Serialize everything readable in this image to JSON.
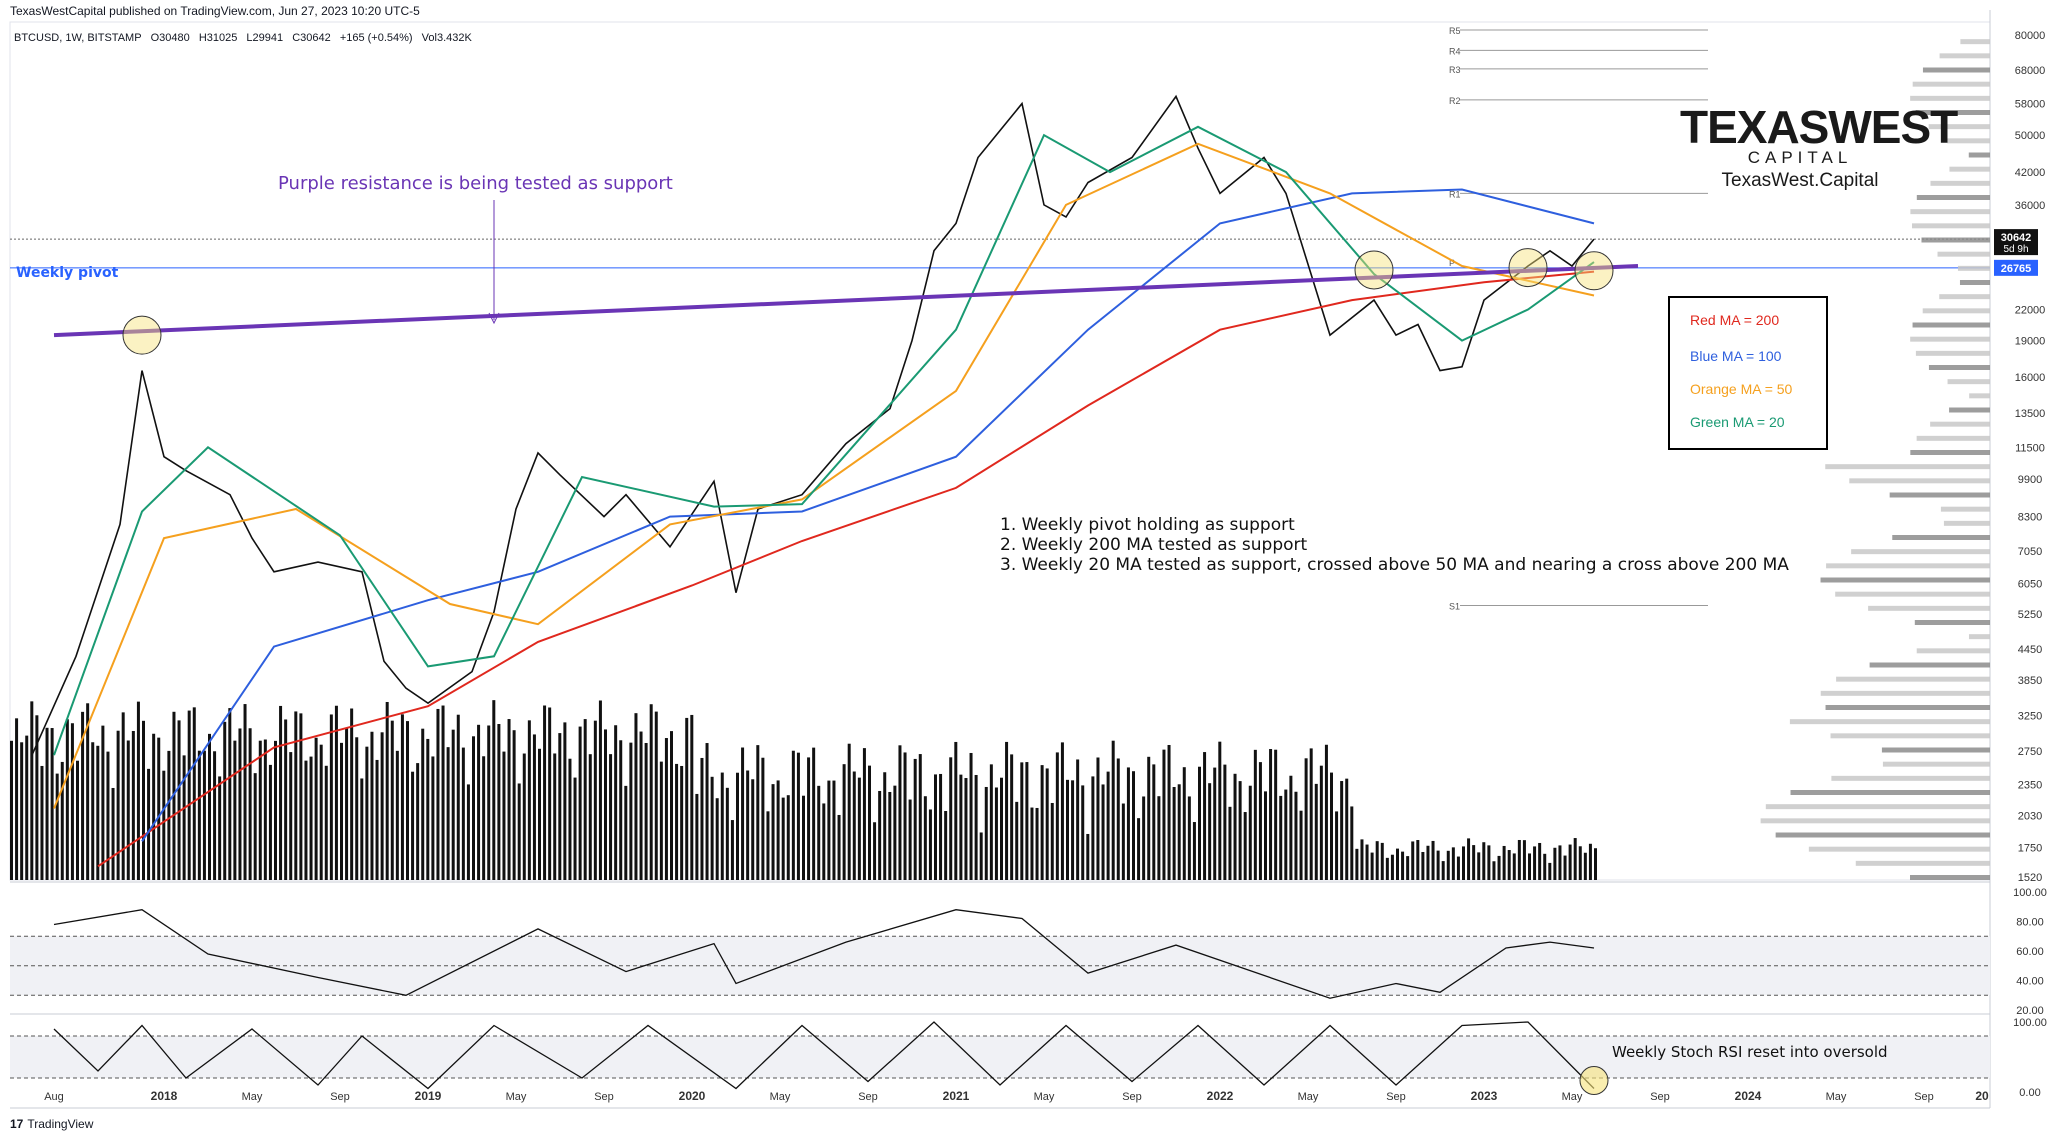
{
  "header": {
    "published": "TexasWestCapital published on TradingView.com, Jun 27, 2023 10:20 UTC-5",
    "symbol": "BTCUSD, 1W, BITSTAMP",
    "open": "O30480",
    "high": "H31025",
    "low": "L29941",
    "close": "C30642",
    "change": "+165 (+0.54%)",
    "volume": "Vol3.432K"
  },
  "brand": {
    "line1a": "TEXAS",
    "line1b": "WEST",
    "line2": "CAPITAL",
    "line3": "TexasWest.Capital"
  },
  "colors": {
    "red_ma": "#e0281e",
    "blue_ma": "#2e5fde",
    "orange_ma": "#f5a01e",
    "green_ma": "#1a9a73",
    "purple": "#6a35b5",
    "pivot": "#2962ff"
  },
  "annotations": {
    "purple_note": "Purple resistance is being tested as support",
    "pivot_label": "Weekly pivot",
    "point1": "1. Weekly pivot holding as support",
    "point2": "2. Weekly 200 MA tested as support",
    "point3": "3. Weekly 20 MA tested as support, crossed above 50 MA and nearing a cross above 200 MA",
    "stoch_note": "Weekly Stoch RSI reset into oversold"
  },
  "legend": {
    "red": "Red MA = 200",
    "blue": "Blue MA = 100",
    "orange": "Orange MA = 50",
    "green": "Green MA = 20"
  },
  "footer": "TradingView",
  "chart_data": [
    {
      "type": "line",
      "title": "BTCUSD, 1W, BITSTAMP",
      "scale": "log",
      "ylim": [
        1500,
        82000
      ],
      "price_ticks": [
        80000,
        68000,
        58000,
        50000,
        42000,
        36000,
        22000,
        19000,
        16000,
        13500,
        11500,
        9900,
        8300,
        7050,
        6050,
        5250,
        4450,
        3850,
        3250,
        2750,
        2350,
        2030,
        1750,
        1520
      ],
      "price_labels": [
        "30642",
        "5d 9h",
        "26765"
      ],
      "pivot_levels": [
        {
          "name": "R5",
          "value": 82000
        },
        {
          "name": "R4",
          "value": 74500
        },
        {
          "name": "R3",
          "value": 68300
        },
        {
          "name": "R2",
          "value": 59000
        },
        {
          "name": "R1",
          "value": 38000
        },
        {
          "name": "P",
          "value": 26765
        },
        {
          "name": "S1",
          "value": 5460
        }
      ],
      "x_tick_labels": [
        "Aug",
        "2018",
        "May",
        "Sep",
        "2019",
        "May",
        "Sep",
        "2020",
        "May",
        "Sep",
        "2021",
        "May",
        "Sep",
        "2022",
        "May",
        "Sep",
        "2023",
        "May",
        "Sep",
        "2024",
        "May",
        "Sep",
        "20"
      ],
      "series": [
        {
          "name": "BTCUSD close",
          "points": [
            [
              "2017-07",
              2700
            ],
            [
              "2017-09",
              4300
            ],
            [
              "2017-11",
              8000
            ],
            [
              "2017-12",
              16500
            ],
            [
              "2018-01",
              11000
            ],
            [
              "2018-02",
              10300
            ],
            [
              "2018-04",
              9200
            ],
            [
              "2018-05",
              7500
            ],
            [
              "2018-06",
              6400
            ],
            [
              "2018-08",
              6700
            ],
            [
              "2018-10",
              6400
            ],
            [
              "2018-11",
              4200
            ],
            [
              "2018-12",
              3700
            ],
            [
              "2019-01",
              3450
            ],
            [
              "2019-03",
              4000
            ],
            [
              "2019-04",
              5300
            ],
            [
              "2019-05",
              8600
            ],
            [
              "2019-06",
              11200
            ],
            [
              "2019-07",
              10100
            ],
            [
              "2019-09",
              8300
            ],
            [
              "2019-10",
              9200
            ],
            [
              "2019-12",
              7200
            ],
            [
              "2020-02",
              9800
            ],
            [
              "2020-03",
              5800
            ],
            [
              "2020-04",
              8600
            ],
            [
              "2020-06",
              9200
            ],
            [
              "2020-08",
              11700
            ],
            [
              "2020-10",
              13800
            ],
            [
              "2020-11",
              19000
            ],
            [
              "2020-12",
              29000
            ],
            [
              "2021-01",
              33000
            ],
            [
              "2021-02",
              45000
            ],
            [
              "2021-04",
              58000
            ],
            [
              "2021-05",
              36000
            ],
            [
              "2021-06",
              34000
            ],
            [
              "2021-07",
              40000
            ],
            [
              "2021-09",
              45000
            ],
            [
              "2021-11",
              60000
            ],
            [
              "2021-12",
              47000
            ],
            [
              "2022-01",
              38000
            ],
            [
              "2022-03",
              45000
            ],
            [
              "2022-04",
              38000
            ],
            [
              "2022-06",
              19500
            ],
            [
              "2022-08",
              23000
            ],
            [
              "2022-09",
              19500
            ],
            [
              "2022-10",
              20500
            ],
            [
              "2022-11",
              16500
            ],
            [
              "2022-12",
              16800
            ],
            [
              "2023-01",
              23000
            ],
            [
              "2023-03",
              27000
            ],
            [
              "2023-04",
              29000
            ],
            [
              "2023-05",
              27000
            ],
            [
              "2023-06",
              30642
            ]
          ]
        },
        {
          "name": "Red MA = 200",
          "points": [
            [
              "2017-10",
              1600
            ],
            [
              "2018-06",
              2800
            ],
            [
              "2019-01",
              3400
            ],
            [
              "2019-06",
              4600
            ],
            [
              "2020-01",
              6000
            ],
            [
              "2020-06",
              7400
            ],
            [
              "2021-01",
              9500
            ],
            [
              "2021-07",
              14000
            ],
            [
              "2022-01",
              20000
            ],
            [
              "2022-07",
              23000
            ],
            [
              "2023-01",
              25000
            ],
            [
              "2023-06",
              26300
            ]
          ]
        },
        {
          "name": "Blue MA = 100",
          "points": [
            [
              "2017-12",
              1800
            ],
            [
              "2018-06",
              4500
            ],
            [
              "2019-01",
              5600
            ],
            [
              "2019-06",
              6400
            ],
            [
              "2019-12",
              8300
            ],
            [
              "2020-06",
              8500
            ],
            [
              "2021-01",
              11000
            ],
            [
              "2021-07",
              20000
            ],
            [
              "2022-01",
              33000
            ],
            [
              "2022-07",
              38000
            ],
            [
              "2022-12",
              38700
            ],
            [
              "2023-06",
              33000
            ]
          ]
        },
        {
          "name": "Orange MA = 50",
          "points": [
            [
              "2017-08",
              2100
            ],
            [
              "2018-01",
              7500
            ],
            [
              "2018-07",
              8600
            ],
            [
              "2019-02",
              5500
            ],
            [
              "2019-06",
              5000
            ],
            [
              "2019-12",
              8000
            ],
            [
              "2020-06",
              9000
            ],
            [
              "2021-01",
              15000
            ],
            [
              "2021-06",
              36000
            ],
            [
              "2021-12",
              48000
            ],
            [
              "2022-06",
              38000
            ],
            [
              "2022-12",
              27000
            ],
            [
              "2023-06",
              23500
            ]
          ]
        },
        {
          "name": "Green MA = 20",
          "points": [
            [
              "2017-08",
              2700
            ],
            [
              "2017-12",
              8500
            ],
            [
              "2018-03",
              11500
            ],
            [
              "2018-09",
              7600
            ],
            [
              "2019-01",
              4100
            ],
            [
              "2019-04",
              4300
            ],
            [
              "2019-08",
              10000
            ],
            [
              "2020-02",
              8700
            ],
            [
              "2020-06",
              8800
            ],
            [
              "2021-01",
              20000
            ],
            [
              "2021-05",
              50000
            ],
            [
              "2021-08",
              42000
            ],
            [
              "2021-12",
              52000
            ],
            [
              "2022-04",
              42000
            ],
            [
              "2022-08",
              26000
            ],
            [
              "2022-12",
              19000
            ],
            [
              "2023-03",
              22000
            ],
            [
              "2023-06",
              27500
            ]
          ]
        }
      ],
      "trendline": {
        "name": "Purple resistance",
        "points": [
          [
            "2017-08",
            19500
          ],
          [
            "2023-08",
            27000
          ]
        ]
      }
    },
    {
      "type": "line",
      "title": "RSI",
      "ylim": [
        20,
        100
      ],
      "y_ticks": [
        "100.00",
        "80.00",
        "60.00",
        "40.00",
        "20.00"
      ],
      "bands": [
        70,
        50,
        30
      ],
      "series": [
        {
          "name": "RSI",
          "points": [
            [
              "2017-08",
              78
            ],
            [
              "2017-12",
              88
            ],
            [
              "2018-03",
              58
            ],
            [
              "2018-08",
              42
            ],
            [
              "2018-12",
              30
            ],
            [
              "2019-06",
              75
            ],
            [
              "2019-10",
              46
            ],
            [
              "2020-02",
              65
            ],
            [
              "2020-03",
              38
            ],
            [
              "2020-08",
              66
            ],
            [
              "2021-01",
              88
            ],
            [
              "2021-04",
              82
            ],
            [
              "2021-07",
              45
            ],
            [
              "2021-11",
              64
            ],
            [
              "2022-06",
              28
            ],
            [
              "2022-09",
              38
            ],
            [
              "2022-11",
              32
            ],
            [
              "2023-02",
              62
            ],
            [
              "2023-04",
              66
            ],
            [
              "2023-06",
              62
            ]
          ]
        }
      ]
    },
    {
      "type": "line",
      "title": "Stoch RSI",
      "ylim": [
        0,
        100
      ],
      "y_ticks": [
        "100.00",
        "0.00"
      ],
      "bands": [
        80,
        20
      ],
      "series": [
        {
          "name": "Stoch RSI %K",
          "points": [
            [
              "2017-08",
              90
            ],
            [
              "2017-10",
              30
            ],
            [
              "2017-12",
              95
            ],
            [
              "2018-02",
              20
            ],
            [
              "2018-05",
              90
            ],
            [
              "2018-08",
              10
            ],
            [
              "2018-10",
              80
            ],
            [
              "2019-01",
              5
            ],
            [
              "2019-04",
              95
            ],
            [
              "2019-08",
              20
            ],
            [
              "2019-11",
              95
            ],
            [
              "2020-03",
              5
            ],
            [
              "2020-06",
              95
            ],
            [
              "2020-09",
              15
            ],
            [
              "2020-12",
              100
            ],
            [
              "2021-03",
              10
            ],
            [
              "2021-06",
              95
            ],
            [
              "2021-09",
              15
            ],
            [
              "2021-12",
              95
            ],
            [
              "2022-03",
              10
            ],
            [
              "2022-06",
              95
            ],
            [
              "2022-09",
              10
            ],
            [
              "2022-12",
              95
            ],
            [
              "2023-03",
              100
            ],
            [
              "2023-06",
              5
            ]
          ]
        }
      ]
    }
  ]
}
